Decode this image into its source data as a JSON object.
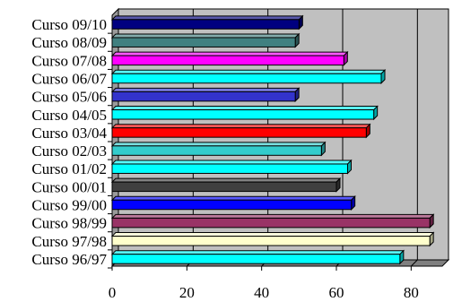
{
  "chart_data": {
    "type": "bar",
    "orientation": "horizontal",
    "style": "3d",
    "title": "",
    "xlabel": "",
    "ylabel": "",
    "categories": [
      "Curso 09/10",
      "Curso 08/09",
      "Curso 07/08",
      "Curso 06/07",
      "Curso 05/06",
      "Curso 04/05",
      "Curso 03/04",
      "Curso 02/03",
      "Curso 01/02",
      "Curso 00/01",
      "Curso 99/00",
      "Curso 98/99",
      "Curso 97/98",
      "Curso 96/97"
    ],
    "values": [
      50,
      49,
      62,
      72,
      49,
      70,
      68,
      56,
      63,
      60,
      64,
      85,
      85,
      77
    ],
    "bar_colors": [
      "#000080",
      "#408080",
      "#ff00ff",
      "#00ffff",
      "#3333cc",
      "#00ffff",
      "#ff0000",
      "#33cccc",
      "#00ffff",
      "#404040",
      "#0000ff",
      "#993366",
      "#ffffcc",
      "#00ffff"
    ],
    "xlim": [
      0,
      90
    ],
    "x_ticks": [
      "0",
      "20",
      "40",
      "60",
      "80"
    ],
    "grid": true,
    "legend": "none",
    "plot_background": "#c0c0c0"
  }
}
